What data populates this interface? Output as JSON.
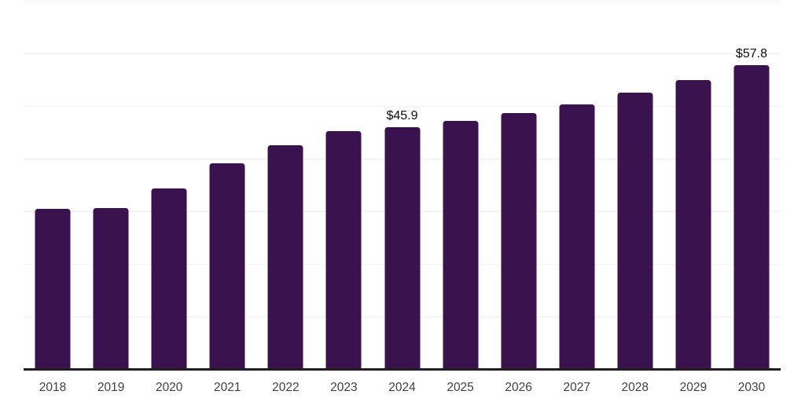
{
  "chart_data": {
    "type": "bar",
    "title": "",
    "xlabel": "",
    "ylabel": "",
    "categories": [
      "2018",
      "2019",
      "2020",
      "2021",
      "2022",
      "2023",
      "2024",
      "2025",
      "2026",
      "2027",
      "2028",
      "2029",
      "2030"
    ],
    "values": [
      30.4,
      30.6,
      34.3,
      39.1,
      42.5,
      45.3,
      45.9,
      47.1,
      48.6,
      50.3,
      52.5,
      55.0,
      57.8
    ],
    "value_labels": [
      {
        "category": "2024",
        "text": "$45.9"
      },
      {
        "category": "2030",
        "text": "$57.8"
      }
    ],
    "ylim": [
      0,
      70
    ],
    "grid_step": 10,
    "grid": "horizontal-only",
    "legend": "none",
    "y_axis_ticks_visible": false,
    "colors": {
      "bar": "#3a124e",
      "axis_line": "#1f1f1f",
      "gridline": "#f1f1f2",
      "tick_label": "#404040",
      "value_label": "#0d0d0d",
      "background": "#ffffff"
    }
  }
}
